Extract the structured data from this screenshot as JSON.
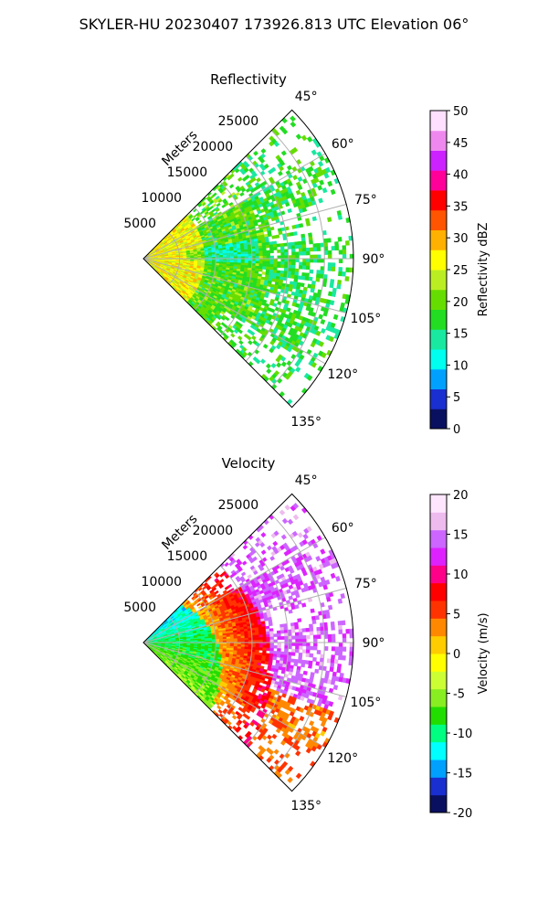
{
  "figure": {
    "suptitle": "SKYLER-HU  20230407  173926.813 UTC Elevation 06°"
  },
  "chart_data": [
    {
      "type": "heatmap",
      "projection": "polar-sector",
      "title": "Reflectivity",
      "radial_label": "Meters",
      "radial_ticks": [
        5000,
        10000,
        15000,
        20000,
        25000
      ],
      "r_max": 29000,
      "azimuth_ticks": [
        "45°",
        "60°",
        "75°",
        "90°",
        "105°",
        "120°",
        "135°"
      ],
      "azimuth_range_deg": [
        45,
        135
      ],
      "grid": true,
      "colorbar": {
        "label": "Reflectivity dBZ",
        "range": [
          0,
          50
        ],
        "ticks": [
          0,
          5,
          10,
          15,
          20,
          25,
          30,
          35,
          40,
          45,
          50
        ]
      },
      "dominant_values": {
        "near_range_dBZ": 26,
        "mid_range_dBZ": 19,
        "far_range_dBZ": 17
      }
    },
    {
      "type": "heatmap",
      "projection": "polar-sector",
      "title": "Velocity",
      "radial_label": "Meters",
      "radial_ticks": [
        5000,
        10000,
        15000,
        20000,
        25000
      ],
      "r_max": 29000,
      "azimuth_ticks": [
        "45°",
        "60°",
        "75°",
        "90°",
        "105°",
        "120°",
        "135°"
      ],
      "azimuth_range_deg": [
        45,
        135
      ],
      "grid": true,
      "colorbar": {
        "label": "Velocity (m/s)",
        "range": [
          -20,
          20
        ],
        "ticks": [
          -20,
          -15,
          -10,
          -5,
          0,
          5,
          10,
          15,
          20
        ]
      },
      "dominant_values": {
        "near_range_ms": -9,
        "mid_range_ms": 2,
        "far_range_ms": 14
      }
    }
  ],
  "colors": {
    "reflectivity_scale": [
      "#0a1060",
      "#1a2fd0",
      "#00a0ff",
      "#00ffee",
      "#19e8a0",
      "#22dd22",
      "#66dd00",
      "#bbee22",
      "#ffff00",
      "#ffb000",
      "#ff5500",
      "#ff0000",
      "#ff0099",
      "#cc22ff",
      "#ee88ee",
      "#ffe0ff"
    ],
    "velocity_scale": [
      "#0a1060",
      "#1a2fd0",
      "#00a0ff",
      "#00ffff",
      "#00ff80",
      "#22dd00",
      "#88ee22",
      "#ccff33",
      "#ffff00",
      "#ffcc00",
      "#ff8800",
      "#ff3300",
      "#ff0000",
      "#ff0088",
      "#dd22ff",
      "#cc66ff",
      "#eebbee",
      "#ffe6ff"
    ]
  }
}
